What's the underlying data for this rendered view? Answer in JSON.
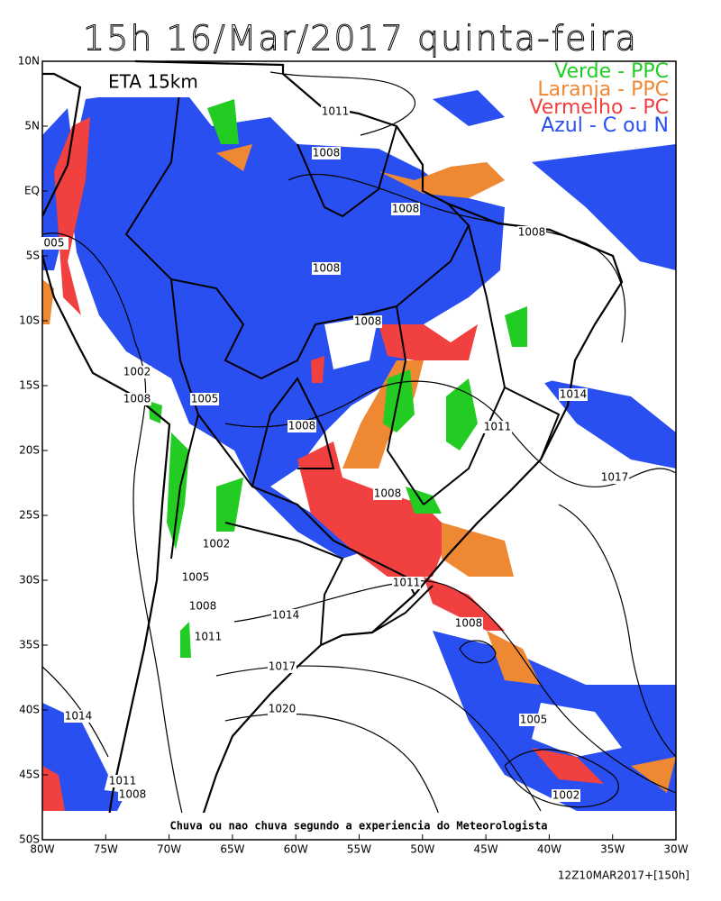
{
  "title": "15h 16/Mar/2017 quinta-feira",
  "model_label": "ETA 15km",
  "legend": [
    {
      "label": "Verde - PPC",
      "color": "#22cc22"
    },
    {
      "label": "Laranja - PPC",
      "color": "#ee8833"
    },
    {
      "label": "Vermelho - PC",
      "color": "#f04040"
    },
    {
      "label": "Azul - C ou N",
      "color": "#2a4ff0"
    }
  ],
  "map": {
    "xlim": [
      -80,
      -30
    ],
    "ylim": [
      -50,
      10
    ],
    "xticks": [
      {
        "value": -80,
        "label": "80W"
      },
      {
        "value": -75,
        "label": "75W"
      },
      {
        "value": -70,
        "label": "70W"
      },
      {
        "value": -65,
        "label": "65W"
      },
      {
        "value": -60,
        "label": "60W"
      },
      {
        "value": -55,
        "label": "55W"
      },
      {
        "value": -50,
        "label": "50W"
      },
      {
        "value": -45,
        "label": "45W"
      },
      {
        "value": -40,
        "label": "40W"
      },
      {
        "value": -35,
        "label": "35W"
      },
      {
        "value": -30,
        "label": "30W"
      }
    ],
    "yticks": [
      {
        "value": 10,
        "label": "10N"
      },
      {
        "value": 5,
        "label": "5N"
      },
      {
        "value": 0,
        "label": "EQ"
      },
      {
        "value": -5,
        "label": "5S"
      },
      {
        "value": -10,
        "label": "10S"
      },
      {
        "value": -15,
        "label": "15S"
      },
      {
        "value": -20,
        "label": "20S"
      },
      {
        "value": -25,
        "label": "25S"
      },
      {
        "value": -30,
        "label": "30S"
      },
      {
        "value": -35,
        "label": "35S"
      },
      {
        "value": -40,
        "label": "40S"
      },
      {
        "value": -45,
        "label": "45S"
      },
      {
        "value": -50,
        "label": "50S"
      }
    ]
  },
  "isobar_labels": [
    "1011",
    "1008",
    "1008",
    "1008",
    "005",
    "1008",
    "1008",
    "1002",
    "1005",
    "1008",
    "1014",
    "1008",
    "1011",
    "1017",
    "1008",
    "1002",
    "1005",
    "1011",
    "1008",
    "1014",
    "1008",
    "1011",
    "1017",
    "1020",
    "1014",
    "1005",
    "1011",
    "1008",
    "1002"
  ],
  "note": "Chuva ou nao chuva segundo a experiencia do Meteorologista",
  "run_info": "12Z10MAR2017+[150h]"
}
